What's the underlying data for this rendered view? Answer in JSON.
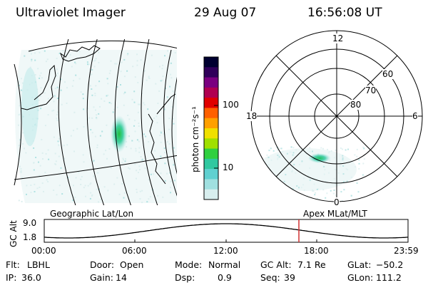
{
  "header": {
    "instrument": "Ultraviolet Imager",
    "date": "29 Aug 07",
    "time": "16:56:08 UT"
  },
  "colorbar": {
    "label": "photon cm⁻²s⁻¹",
    "ticks": [
      "100",
      "10"
    ],
    "colors": [
      "#000030",
      "#30005a",
      "#7a0080",
      "#b00050",
      "#e00000",
      "#ff6000",
      "#ffa000",
      "#f0e000",
      "#a0e000",
      "#30d040",
      "#30c8a0",
      "#60d0d0",
      "#a0e0e0",
      "#d8eeee"
    ]
  },
  "geo_panel": {
    "label": "Geographic Lat/Lon"
  },
  "polar_panel": {
    "label": "Apex MLat/MLT",
    "mlt_labels": [
      "12",
      "18",
      "6",
      "0"
    ],
    "lat_labels": [
      "60",
      "70",
      "80"
    ]
  },
  "timeline": {
    "y_label": "GC Alt",
    "y_ticks": [
      "9.0",
      "1.8"
    ],
    "x_ticks": [
      "00:00",
      "06:00",
      "12:00",
      "18:00",
      "23:59"
    ],
    "marker_color": "#d03030"
  },
  "footer": {
    "row1": [
      {
        "key": "Flt:",
        "value": "LBHL"
      },
      {
        "key": "Door:",
        "value": "Open"
      },
      {
        "key": "Mode:",
        "value": "Normal"
      },
      {
        "key": "GC Alt:",
        "value": "7.1 Re"
      },
      {
        "key": "GLat:",
        "value": "−50.2"
      }
    ],
    "row2": [
      {
        "key": "IP:",
        "value": "36.0"
      },
      {
        "key": "Gain:",
        "value": "14"
      },
      {
        "key": "Dsp:",
        "value": "0.9"
      },
      {
        "key": "Seq:",
        "value": "39"
      },
      {
        "key": "GLon:",
        "value": "111.2"
      }
    ]
  }
}
